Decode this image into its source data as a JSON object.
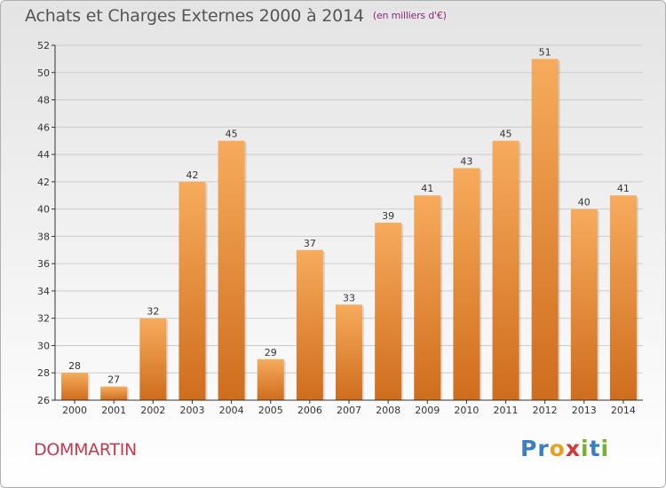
{
  "title": "Achats et Charges Externes 2000 à 2014",
  "unit_note": "(en milliers d'€)",
  "location": "DOMMARTIN",
  "brand": {
    "letters": [
      "P",
      "r",
      "o",
      "x",
      "i",
      "t",
      "i"
    ],
    "colors": [
      "#3a7fc1",
      "#3a7fc1",
      "#e8a020",
      "#d23a3a",
      "#7ab030",
      "#3a7fc1",
      "#7ab030"
    ]
  },
  "colors": {
    "bar_light": "#f7ab5c",
    "bar_dark": "#cf6d1d",
    "axis": "#333333",
    "grid": "#cccccc"
  },
  "chart_data": {
    "type": "bar",
    "categories": [
      "2000",
      "2001",
      "2002",
      "2003",
      "2004",
      "2005",
      "2006",
      "2007",
      "2008",
      "2009",
      "2010",
      "2011",
      "2012",
      "2013",
      "2014"
    ],
    "values": [
      28,
      27,
      32,
      42,
      45,
      29,
      37,
      33,
      39,
      41,
      43,
      45,
      51,
      40,
      41
    ],
    "data_labels": [
      "28",
      "27",
      "32",
      "42",
      "45",
      "29",
      "37",
      "33",
      "39",
      "41",
      "43",
      "45",
      "51",
      "40",
      "41"
    ],
    "title": "Achats et Charges Externes 2000 à 2014",
    "xlabel": "",
    "ylabel": "",
    "ylim": [
      26,
      52
    ],
    "yticks": [
      26,
      28,
      30,
      32,
      34,
      36,
      38,
      40,
      42,
      44,
      46,
      48,
      50,
      52
    ],
    "grid": true,
    "legend": "none"
  }
}
